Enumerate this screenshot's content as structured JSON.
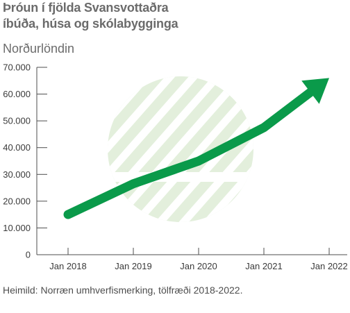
{
  "header": {
    "title_line1": "Þróun í fjölda Svansvottaðra",
    "title_line2": "íbúða, húsa og skólabygginga"
  },
  "footer": {
    "source": "Heimild: Norræn umhverfismerking, tölfræði 2018-2022."
  },
  "colors": {
    "arrow": "#0a9a4a",
    "logo": "#e3efdc",
    "axis": "#4d4d4d"
  },
  "chart_data": {
    "type": "line",
    "title": "Þróun í fjölda Svansvottaðra íbúða, húsa og skólabygginga",
    "subtitle": "Norðurlöndin",
    "categories": [
      "Jan 2018",
      "Jan 2019",
      "Jan 2020",
      "Jan 2021",
      "Jan 2022"
    ],
    "values": [
      15000,
      26500,
      35000,
      47500,
      66000
    ],
    "ylim": [
      0,
      70000
    ],
    "yticks": [
      "0",
      "10.000",
      "20.000",
      "30.000",
      "40.000",
      "50.000",
      "60.000",
      "70.000"
    ],
    "ytick_values": [
      0,
      10000,
      20000,
      30000,
      40000,
      50000,
      60000,
      70000
    ],
    "grid": false,
    "legend": "none"
  }
}
